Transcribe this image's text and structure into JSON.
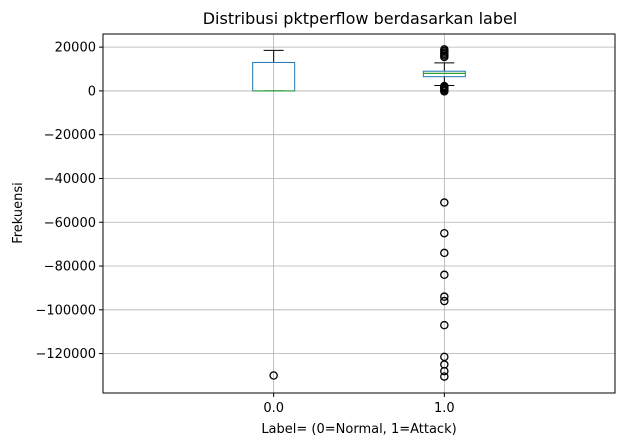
{
  "chart_data": {
    "type": "boxplot",
    "title": "Distribusi pktperflow berdasarkan label",
    "xlabel": "Label= (0=Normal, 1=Attack)",
    "ylabel": "Frekuensi",
    "categories": [
      "0.0",
      "1.0"
    ],
    "ylim": [
      -138000,
      26000
    ],
    "yticks": [
      20000,
      0,
      -20000,
      -40000,
      -60000,
      -80000,
      -100000,
      -120000
    ],
    "ytick_labels": [
      "20000",
      "0",
      "−20000",
      "−40000",
      "−60000",
      "−80000",
      "−100000",
      "−120000"
    ],
    "grid": true,
    "boxes": [
      {
        "category": "0.0",
        "whisker_low": 0,
        "q1": 0,
        "median": 0,
        "q3": 13000,
        "whisker_high": 18500,
        "outliers": [
          -130000
        ]
      },
      {
        "category": "1.0",
        "whisker_low": 2500,
        "q1": 6500,
        "median": 8000,
        "q3": 9000,
        "whisker_high": 12800,
        "outliers": [
          19000,
          18300,
          17600,
          16900,
          16200,
          15500,
          2200,
          1800,
          1300,
          800,
          300,
          -200,
          -51000,
          -65000,
          -74000,
          -84000,
          -94000,
          -96000,
          -107000,
          -121500,
          -125000,
          -128000,
          -130500
        ]
      }
    ],
    "colors": {
      "box": "#1f77b4",
      "median": "#2ca02c",
      "whisker": "#000000",
      "grid": "#b0b0b0",
      "outlier": "#000000"
    }
  }
}
